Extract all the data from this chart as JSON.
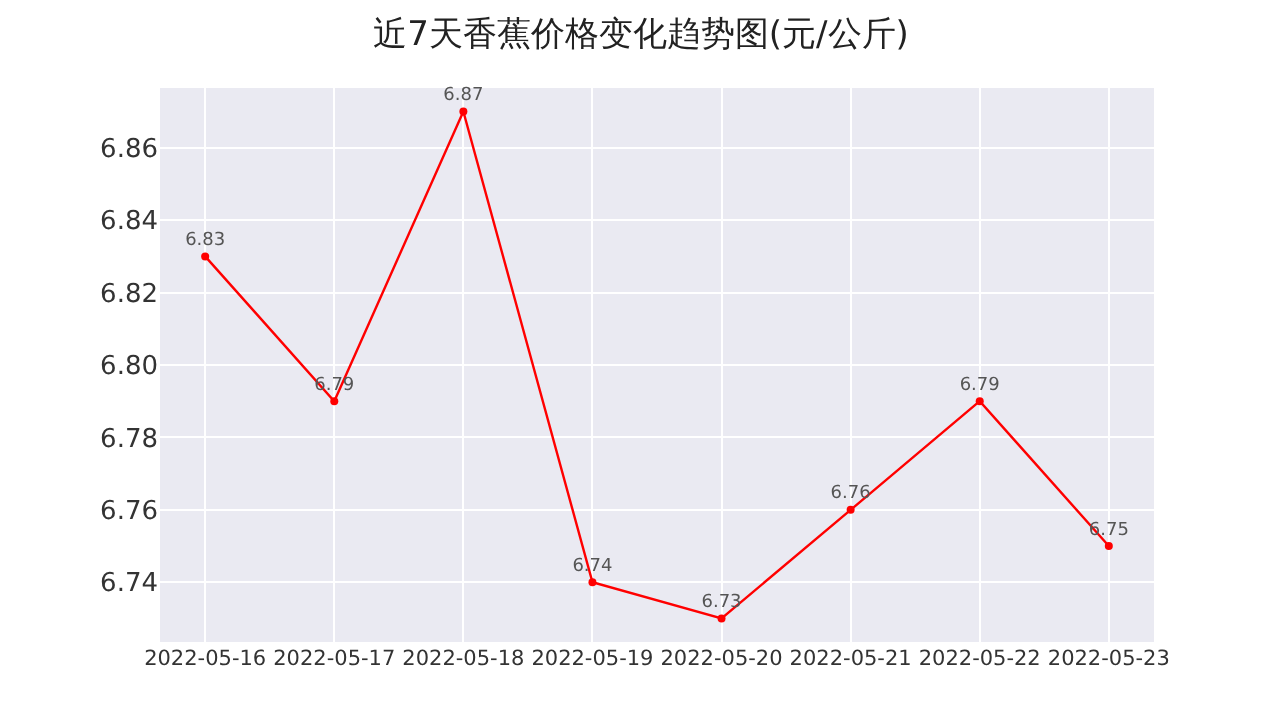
{
  "chart_data": {
    "type": "line",
    "title": "近7天香蕉价格变化趋势图(元/公斤)",
    "categories": [
      "2022-05-16",
      "2022-05-17",
      "2022-05-18",
      "2022-05-19",
      "2022-05-20",
      "2022-05-21",
      "2022-05-22",
      "2022-05-23"
    ],
    "series": [
      {
        "color": "#ff0000",
        "values": [
          6.83,
          6.79,
          6.87,
          6.74,
          6.73,
          6.76,
          6.79,
          6.75
        ]
      }
    ],
    "ylim": [
      6.7235,
      6.8765
    ],
    "yticks": [
      {
        "value": 6.74,
        "label": "6.74"
      },
      {
        "value": 6.76,
        "label": "6.76"
      },
      {
        "value": 6.78,
        "label": "6.78"
      },
      {
        "value": 6.8,
        "label": "6.80"
      },
      {
        "value": 6.82,
        "label": "6.82"
      },
      {
        "value": 6.84,
        "label": "6.84"
      },
      {
        "value": 6.86,
        "label": "6.86"
      }
    ],
    "grid": true,
    "marker": "circle",
    "data_labels": true
  }
}
